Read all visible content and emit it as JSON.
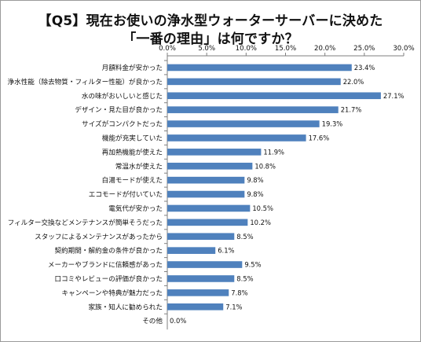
{
  "chart_data": {
    "type": "bar",
    "orientation": "horizontal",
    "title_line1": "【Q5】現在お使いの浄水型ウォーターサーバーに決めた",
    "title_line2": "「一番の理由」は何ですか？",
    "categories": [
      "月額料金が安かった",
      "浄水性能（除去物質・フィルター性能）が良かった",
      "水の味がおいしいと感じた",
      "デザイン・見た目が良かった",
      "サイズがコンパクトだった",
      "機能が充実していた",
      "再加熱機能が使えた",
      "常温水が使えた",
      "白湯モードが使えた",
      "エコモードが付いていた",
      "電気代が安かった",
      "フィルター交換などメンテナンスが簡単そうだった",
      "スタッフによるメンテナンスがあったから",
      "契約期間・解約金の条件が良かった",
      "メーカーやブランドに信頼感があった",
      "口コミやレビューの評価が良かった",
      "キャンペーンや特典が魅力だった",
      "家族・知人に勧められた",
      "その他"
    ],
    "values": [
      23.4,
      22.0,
      27.1,
      21.7,
      19.3,
      17.6,
      11.9,
      10.8,
      9.8,
      9.8,
      10.5,
      10.2,
      8.5,
      6.1,
      9.5,
      8.5,
      7.8,
      7.1,
      0.0
    ],
    "value_labels": [
      "23.4%",
      "22.0%",
      "27.1%",
      "21.7%",
      "19.3%",
      "17.6%",
      "11.9%",
      "10.8%",
      "9.8%",
      "9.8%",
      "10.5%",
      "10.2%",
      "8.5%",
      "6.1%",
      "9.5%",
      "8.5%",
      "7.8%",
      "7.1%",
      "0.0%"
    ],
    "xlim": [
      0,
      30
    ],
    "xticks": [
      0,
      5,
      10,
      15,
      20,
      25,
      30
    ],
    "xtick_labels": [
      "0.0%",
      "5.0%",
      "10.0%",
      "15.0%",
      "20.0%",
      "25.0%",
      "30.0%"
    ],
    "axis_position": "top",
    "grid": false,
    "bar_color": "#4f81bd"
  }
}
